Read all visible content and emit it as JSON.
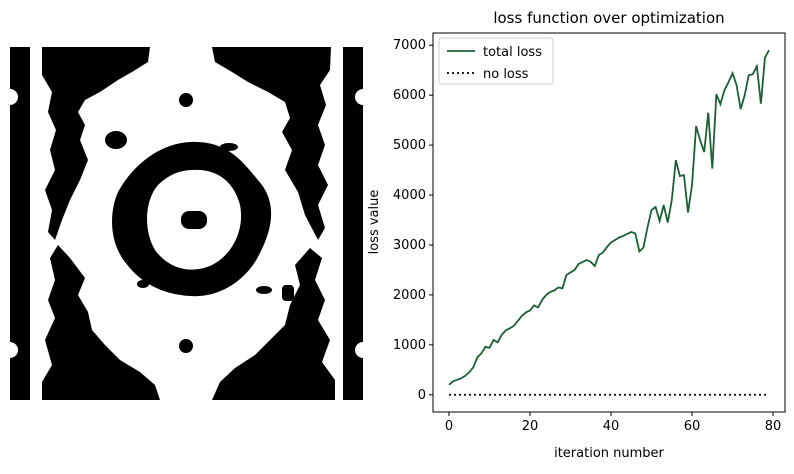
{
  "chart_data": {
    "type": "line",
    "title": "loss function over optimization",
    "xlabel": "iteration number",
    "ylabel": "loss value",
    "x": [
      0,
      1,
      2,
      3,
      4,
      5,
      6,
      7,
      8,
      9,
      10,
      11,
      12,
      13,
      14,
      15,
      16,
      17,
      18,
      19,
      20,
      21,
      22,
      23,
      24,
      25,
      26,
      27,
      28,
      29,
      30,
      31,
      32,
      33,
      34,
      35,
      36,
      37,
      38,
      39,
      40,
      41,
      42,
      43,
      44,
      45,
      46,
      47,
      48,
      49,
      50,
      51,
      52,
      53,
      54,
      55,
      56,
      57,
      58,
      59,
      60,
      61,
      62,
      63,
      64,
      65,
      66,
      67,
      68,
      69,
      70,
      71,
      72,
      73,
      74,
      75,
      76,
      77,
      78,
      79
    ],
    "series": [
      {
        "name": "total loss",
        "color": "#1b6035",
        "dash": "solid",
        "values": [
          200,
          270,
          300,
          330,
          380,
          450,
          550,
          750,
          830,
          960,
          940,
          1100,
          1050,
          1200,
          1290,
          1330,
          1380,
          1480,
          1580,
          1650,
          1690,
          1790,
          1750,
          1900,
          2000,
          2060,
          2090,
          2150,
          2130,
          2400,
          2450,
          2500,
          2620,
          2660,
          2700,
          2660,
          2580,
          2800,
          2850,
          2960,
          3050,
          3100,
          3150,
          3180,
          3220,
          3260,
          3230,
          2870,
          2950,
          3350,
          3700,
          3760,
          3480,
          3800,
          3450,
          3900,
          4700,
          4380,
          4400,
          3650,
          4200,
          5380,
          5100,
          4860,
          5650,
          4530,
          6020,
          5820,
          6100,
          6260,
          6440,
          6200,
          5720,
          6000,
          6400,
          6420,
          6580,
          5830,
          6750,
          6900
        ]
      },
      {
        "name": "no loss",
        "color": "#000000",
        "dash": "dotted",
        "values": [
          0,
          0,
          0,
          0,
          0,
          0,
          0,
          0,
          0,
          0,
          0,
          0,
          0,
          0,
          0,
          0,
          0,
          0,
          0,
          0,
          0,
          0,
          0,
          0,
          0,
          0,
          0,
          0,
          0,
          0,
          0,
          0,
          0,
          0,
          0,
          0,
          0,
          0,
          0,
          0,
          0,
          0,
          0,
          0,
          0,
          0,
          0,
          0,
          0,
          0,
          0,
          0,
          0,
          0,
          0,
          0,
          0,
          0,
          0,
          0,
          0,
          0,
          0,
          0,
          0,
          0,
          0,
          0,
          0,
          0,
          0,
          0,
          0,
          0,
          0,
          0,
          0,
          0,
          0,
          0
        ]
      }
    ],
    "xlim": [
      -3.95,
      82.95
    ],
    "ylim": [
      -345,
      7245
    ],
    "xticks": [
      0,
      20,
      40,
      60,
      80
    ],
    "yticks": [
      0,
      1000,
      2000,
      3000,
      4000,
      5000,
      6000,
      7000
    ],
    "legend": "upper left"
  }
}
